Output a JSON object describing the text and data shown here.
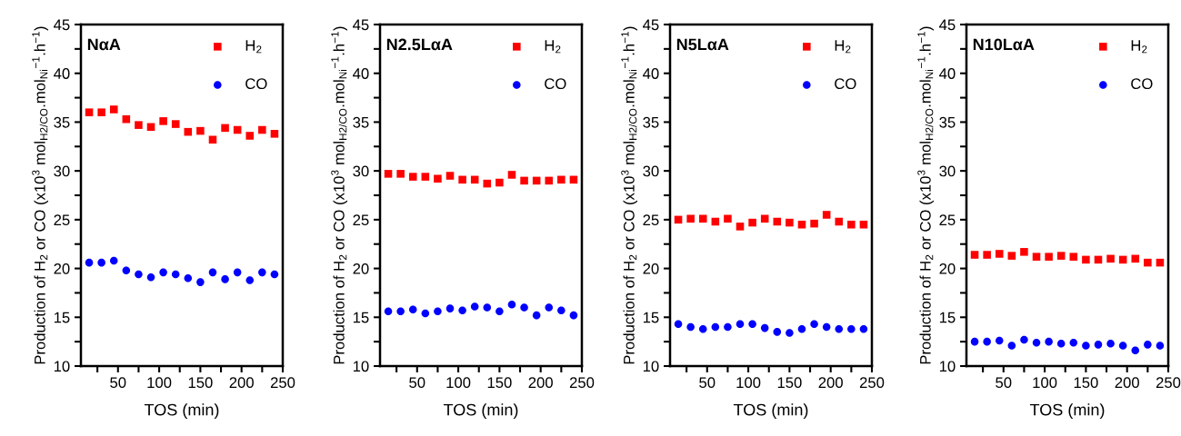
{
  "chart_data": [
    {
      "type": "scatter",
      "title": "NαA",
      "xlabel": "TOS (min)",
      "ylabel": "Production of H$_{2}$ or CO (x10$^{3}$ mol$_{H2/CO}$.mol$_{Ni}$$^{−1}$.h$^{−1}$)",
      "legend": "top right",
      "xlim": [
        5,
        250
      ],
      "ylim": [
        10,
        45
      ],
      "xticks": [
        {
          "value": 25,
          "label": null
        },
        50,
        {
          "value": 75,
          "label": null
        },
        100,
        {
          "value": 125,
          "label": null
        },
        150,
        {
          "value": 175,
          "label": null
        },
        200,
        {
          "value": 225,
          "label": null
        },
        250
      ],
      "yticks": [
        10,
        {
          "value": 12.5,
          "label": null
        },
        15,
        {
          "value": 17.5,
          "label": null
        },
        20,
        {
          "value": 22.5,
          "label": null
        },
        25,
        {
          "value": 27.5,
          "label": null
        },
        30,
        {
          "value": 32.5,
          "label": null
        },
        35,
        {
          "value": 37.5,
          "label": null
        },
        40,
        {
          "value": 42.5,
          "label": null
        },
        45
      ],
      "x": [
        15,
        30,
        45,
        60,
        75,
        90,
        105,
        120,
        135,
        150,
        165,
        180,
        195,
        210,
        225,
        240
      ],
      "series": [
        {
          "name": "H$_{2}$",
          "color": "#ff0000",
          "marker": "square",
          "values": [
            36.0,
            36.0,
            36.3,
            35.3,
            34.7,
            34.5,
            35.1,
            34.8,
            34.0,
            34.1,
            33.2,
            34.4,
            34.2,
            33.6,
            34.2,
            33.8
          ]
        },
        {
          "name": "CO",
          "color": "#0000ff",
          "marker": "circle",
          "values": [
            20.6,
            20.6,
            20.8,
            19.8,
            19.4,
            19.1,
            19.6,
            19.4,
            19.0,
            18.6,
            19.6,
            18.9,
            19.6,
            18.8,
            19.6,
            19.4
          ]
        }
      ]
    },
    {
      "type": "scatter",
      "title": "N2.5LαA",
      "xlabel": "TOS (min)",
      "ylabel": "Production of H$_{2}$ or CO (x10$^{3}$ mol$_{H2/CO}$.mol$_{Ni}$$^{−1}$.h$^{−1}$)",
      "legend": "top right",
      "xlim": [
        5,
        250
      ],
      "ylim": [
        10,
        45
      ],
      "xticks": [
        {
          "value": 25,
          "label": null
        },
        50,
        {
          "value": 75,
          "label": null
        },
        100,
        {
          "value": 125,
          "label": null
        },
        150,
        {
          "value": 175,
          "label": null
        },
        200,
        {
          "value": 225,
          "label": null
        },
        250
      ],
      "yticks": [
        10,
        {
          "value": 12.5,
          "label": null
        },
        15,
        {
          "value": 17.5,
          "label": null
        },
        20,
        {
          "value": 22.5,
          "label": null
        },
        25,
        {
          "value": 27.5,
          "label": null
        },
        30,
        {
          "value": 32.5,
          "label": null
        },
        35,
        {
          "value": 37.5,
          "label": null
        },
        40,
        {
          "value": 42.5,
          "label": null
        },
        45
      ],
      "x": [
        15,
        30,
        45,
        60,
        75,
        90,
        105,
        120,
        135,
        150,
        165,
        180,
        195,
        210,
        225,
        240
      ],
      "series": [
        {
          "name": "H$_{2}$",
          "color": "#ff0000",
          "marker": "square",
          "values": [
            29.7,
            29.7,
            29.4,
            29.4,
            29.2,
            29.5,
            29.1,
            29.1,
            28.7,
            28.8,
            29.6,
            29.0,
            29.0,
            29.0,
            29.1,
            29.1
          ]
        },
        {
          "name": "CO",
          "color": "#0000ff",
          "marker": "circle",
          "values": [
            15.6,
            15.6,
            15.8,
            15.4,
            15.6,
            15.9,
            15.7,
            16.1,
            16.0,
            15.6,
            16.3,
            16.0,
            15.2,
            16.0,
            15.7,
            15.2
          ]
        }
      ]
    },
    {
      "type": "scatter",
      "title": "N5LαA",
      "xlabel": "TOS (min)",
      "ylabel": "Production of H$_{2}$ or CO (x10$^{3}$ mol$_{H2/CO}$.mol$_{Ni}$$^{−1}$.h$^{−1}$)",
      "legend": "top right",
      "xlim": [
        5,
        250
      ],
      "ylim": [
        10,
        45
      ],
      "xticks": [
        {
          "value": 25,
          "label": null
        },
        50,
        {
          "value": 75,
          "label": null
        },
        100,
        {
          "value": 125,
          "label": null
        },
        150,
        {
          "value": 175,
          "label": null
        },
        200,
        {
          "value": 225,
          "label": null
        },
        250
      ],
      "yticks": [
        10,
        {
          "value": 12.5,
          "label": null
        },
        15,
        {
          "value": 17.5,
          "label": null
        },
        20,
        {
          "value": 22.5,
          "label": null
        },
        25,
        {
          "value": 27.5,
          "label": null
        },
        30,
        {
          "value": 32.5,
          "label": null
        },
        35,
        {
          "value": 37.5,
          "label": null
        },
        40,
        {
          "value": 42.5,
          "label": null
        },
        45
      ],
      "x": [
        15,
        30,
        45,
        60,
        75,
        90,
        105,
        120,
        135,
        150,
        165,
        180,
        195,
        210,
        225,
        240
      ],
      "series": [
        {
          "name": "H$_{2}$",
          "color": "#ff0000",
          "marker": "square",
          "values": [
            25.0,
            25.1,
            25.1,
            24.8,
            25.1,
            24.3,
            24.7,
            25.1,
            24.8,
            24.7,
            24.5,
            24.6,
            25.5,
            24.8,
            24.5,
            24.5
          ]
        },
        {
          "name": "CO",
          "color": "#0000ff",
          "marker": "circle",
          "values": [
            14.3,
            14.0,
            13.8,
            14.0,
            14.0,
            14.3,
            14.3,
            13.9,
            13.5,
            13.4,
            13.8,
            14.3,
            14.0,
            13.8,
            13.8,
            13.8
          ]
        }
      ]
    },
    {
      "type": "scatter",
      "title": "N10LαA",
      "xlabel": "TOS (min)",
      "ylabel": "Production of H$_{2}$ or CO (x10$^{3}$ mol$_{H2/CO}$.mol$_{Ni}$$^{−1}$.h$^{−1}$)",
      "legend": "top right",
      "xlim": [
        5,
        250
      ],
      "ylim": [
        10,
        45
      ],
      "xticks": [
        {
          "value": 25,
          "label": null
        },
        50,
        {
          "value": 75,
          "label": null
        },
        100,
        {
          "value": 125,
          "label": null
        },
        150,
        {
          "value": 175,
          "label": null
        },
        200,
        {
          "value": 225,
          "label": null
        },
        250
      ],
      "yticks": [
        10,
        {
          "value": 12.5,
          "label": null
        },
        15,
        {
          "value": 17.5,
          "label": null
        },
        20,
        {
          "value": 22.5,
          "label": null
        },
        25,
        {
          "value": 27.5,
          "label": null
        },
        30,
        {
          "value": 32.5,
          "label": null
        },
        35,
        {
          "value": 37.5,
          "label": null
        },
        40,
        {
          "value": 42.5,
          "label": null
        },
        45
      ],
      "x": [
        15,
        30,
        45,
        60,
        75,
        90,
        105,
        120,
        135,
        150,
        165,
        180,
        195,
        210,
        225,
        240
      ],
      "series": [
        {
          "name": "H$_{2}$",
          "color": "#ff0000",
          "marker": "square",
          "values": [
            21.4,
            21.4,
            21.5,
            21.3,
            21.7,
            21.2,
            21.2,
            21.3,
            21.2,
            20.9,
            20.9,
            21.0,
            20.9,
            21.0,
            20.6,
            20.6
          ]
        },
        {
          "name": "CO",
          "color": "#0000ff",
          "marker": "circle",
          "values": [
            12.5,
            12.5,
            12.6,
            12.1,
            12.7,
            12.4,
            12.5,
            12.3,
            12.4,
            12.1,
            12.2,
            12.3,
            12.1,
            11.6,
            12.2,
            12.1
          ]
        }
      ]
    }
  ]
}
